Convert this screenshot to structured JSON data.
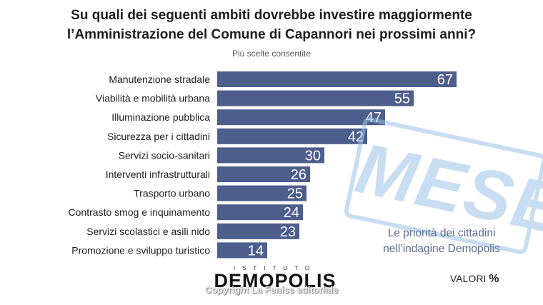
{
  "chart_data": {
    "type": "bar",
    "orientation": "horizontal",
    "title_line1": "Su quali dei seguenti ambiti dovrebbe investire maggiormente",
    "title_line2": "l’Amministrazione del Comune di Capannori nei prossimi anni?",
    "subtitle": "Più scelte consentite",
    "categories": [
      "Manutenzione stradale",
      "Viabilità e mobilità urbana",
      "Illuminazione pubblica",
      "Sicurezza per i cittadini",
      "Servizi socio-sanitari",
      "Interventi infrastrutturali",
      "Trasporto urbano",
      "Contrasto smog e inquinamento",
      "Servizi scolastici e asili nido",
      "Promozione e sviluppo turistico"
    ],
    "values": [
      67,
      55,
      47,
      42,
      30,
      26,
      25,
      24,
      23,
      14
    ],
    "xlim": [
      0,
      70
    ],
    "bar_color": "#4d5d8c",
    "label_color": "#ffffff",
    "grid": false,
    "legend": "none"
  },
  "stamp_text": "MESE",
  "note_line1": "Le priorità dei cittadini",
  "note_line2": "nell’indagine Demopolis",
  "brand_top": "ISTITUTO",
  "brand_name": "DEMOPOLIS",
  "copyright": "Copyright La Fenice editoriale",
  "valori_label": "VALORI",
  "valori_unit": "%"
}
